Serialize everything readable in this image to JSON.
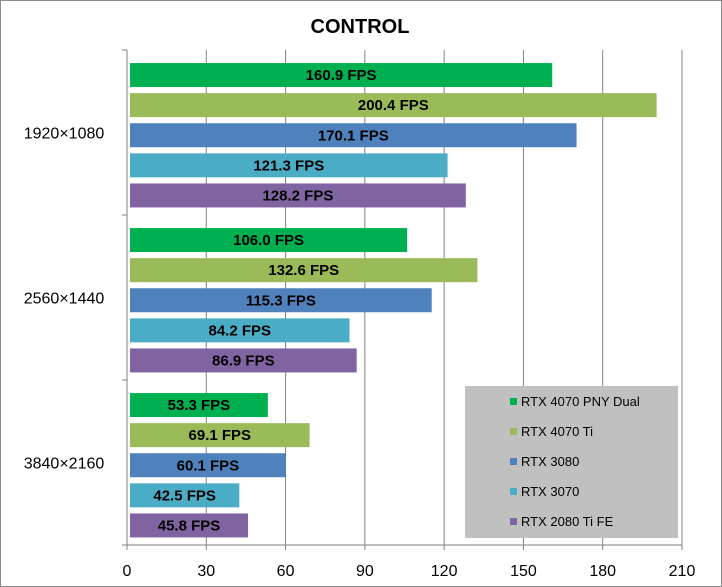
{
  "chart_data": {
    "type": "bar",
    "orientation": "horizontal",
    "title": "CONTROL",
    "categories": [
      "1920×1080",
      "2560×1440",
      "3840×2160"
    ],
    "series": [
      {
        "name": "RTX 4070 PNY Dual",
        "color": "#00b050",
        "values": [
          160.9,
          106.0,
          53.3
        ],
        "labels": [
          "160.9 FPS",
          "106.0 FPS",
          "53.3 FPS"
        ]
      },
      {
        "name": "RTX 4070 Ti",
        "color": "#9bbb59",
        "values": [
          200.4,
          132.6,
          69.1
        ],
        "labels": [
          "200.4 FPS",
          "132.6 FPS",
          "69.1 FPS"
        ]
      },
      {
        "name": "RTX 3080",
        "color": "#4f81bd",
        "values": [
          170.1,
          115.3,
          60.1
        ],
        "labels": [
          "170.1 FPS",
          "115.3 FPS",
          "60.1 FPS"
        ]
      },
      {
        "name": "RTX 3070",
        "color": "#4bacc6",
        "values": [
          121.3,
          84.2,
          42.5
        ],
        "labels": [
          "121.3 FPS",
          "84.2 FPS",
          "42.5 FPS"
        ]
      },
      {
        "name": "RTX 2080 Ti FE",
        "color": "#8064a2",
        "values": [
          128.2,
          86.9,
          45.8
        ],
        "labels": [
          "128.2 FPS",
          "86.9 FPS",
          "45.8 FPS"
        ]
      }
    ],
    "xlim": [
      0,
      210
    ],
    "x_ticks": [
      0,
      30,
      60,
      90,
      120,
      150,
      180,
      210
    ],
    "grid": true,
    "legend_position": "bottom-right",
    "legend_background": "#c0c0c0"
  }
}
